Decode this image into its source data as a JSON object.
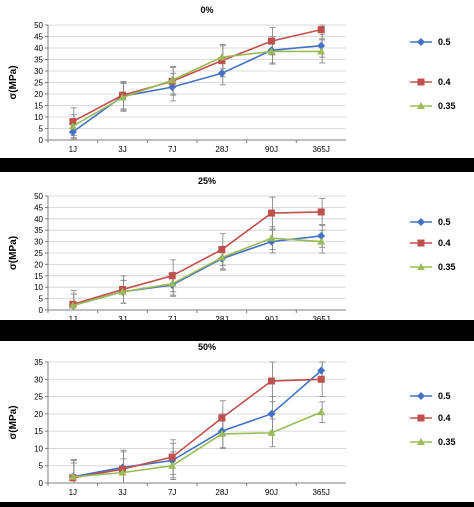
{
  "chart_data": [
    {
      "type": "line",
      "title": "0%",
      "ylabel": "σ(MPa)",
      "xlabel": "",
      "categories": [
        "1J",
        "3J",
        "7J",
        "28J",
        "90J",
        "365J"
      ],
      "ylim": [
        0,
        50
      ],
      "ytick_step": 5,
      "grid": true,
      "legend": "right",
      "series": [
        {
          "name": "0.5",
          "color": "#4472C4",
          "marker": "diamond",
          "values": [
            3.5,
            19,
            23,
            29,
            39,
            41
          ],
          "err": [
            3,
            6,
            6,
            5,
            6,
            5
          ]
        },
        {
          "name": "0.4",
          "color": "#C0504D",
          "marker": "square",
          "values": [
            8,
            19.5,
            25.5,
            34.5,
            43,
            48
          ],
          "err": [
            6,
            6,
            6,
            7,
            6,
            4
          ]
        },
        {
          "name": "0.35",
          "color": "#9BBB59",
          "marker": "triangle",
          "values": [
            6,
            18.5,
            26,
            36,
            38.5,
            38.5
          ],
          "err": [
            5,
            6,
            6,
            5,
            5,
            5
          ]
        }
      ]
    },
    {
      "type": "line",
      "title": "25%",
      "ylabel": "σ(MPa)",
      "xlabel": "",
      "categories": [
        "1J",
        "3J",
        "7J",
        "28J",
        "90J",
        "365J"
      ],
      "ylim": [
        0,
        50
      ],
      "ytick_step": 5,
      "grid": true,
      "legend": "right",
      "series": [
        {
          "name": "0.5",
          "color": "#4472C4",
          "marker": "diamond",
          "values": [
            2,
            8,
            11,
            22.5,
            30,
            32.5
          ],
          "err": [
            5,
            5,
            5,
            5,
            5,
            5
          ]
        },
        {
          "name": "0.4",
          "color": "#C0504D",
          "marker": "square",
          "values": [
            2.5,
            9,
            15,
            26.5,
            42.5,
            43
          ],
          "err": [
            6,
            6,
            7,
            7,
            7,
            6
          ]
        },
        {
          "name": "0.35",
          "color": "#9BBB59",
          "marker": "triangle",
          "values": [
            2,
            8,
            11.5,
            23,
            31.5,
            30
          ],
          "err": [
            5,
            5,
            5,
            5,
            5,
            5
          ]
        }
      ]
    },
    {
      "type": "line",
      "title": "50%",
      "ylabel": "σ(MPa)",
      "xlabel": "",
      "categories": [
        "1J",
        "3J",
        "7J",
        "28J",
        "90J",
        "365J"
      ],
      "ylim": [
        0,
        35
      ],
      "ytick_step": 5,
      "grid": true,
      "legend": "right",
      "series": [
        {
          "name": "0.5",
          "color": "#4472C4",
          "marker": "diamond",
          "values": [
            1.8,
            4.5,
            6.5,
            15,
            20,
            32.5
          ],
          "err": [
            5,
            5,
            5,
            5,
            5,
            3
          ]
        },
        {
          "name": "0.4",
          "color": "#C0504D",
          "marker": "square",
          "values": [
            1.5,
            4,
            7.5,
            18.8,
            29.5,
            30
          ],
          "err": [
            5,
            5,
            5,
            5,
            6,
            5
          ]
        },
        {
          "name": "0.35",
          "color": "#9BBB59",
          "marker": "triangle",
          "values": [
            1.8,
            3,
            5,
            14.2,
            14.5,
            20.5
          ],
          "err": [
            4,
            4,
            4,
            4,
            4,
            3
          ]
        }
      ]
    }
  ]
}
